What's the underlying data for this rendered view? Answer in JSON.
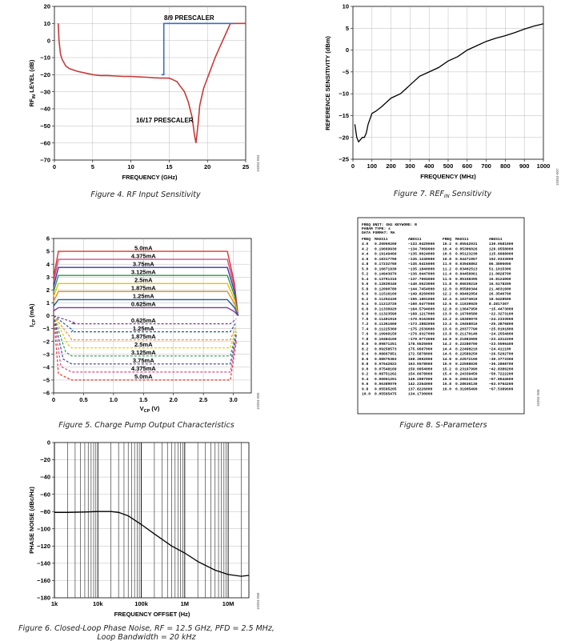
{
  "charts": [
    {
      "type": "line",
      "caption": "Figure 4. RF Input Sensitivity",
      "figure_id": "10304-004",
      "xlabel": "FREQUENCY (GHz)",
      "ylabel_main": "RF",
      "ylabel_sub": "IN",
      "ylabel_rest": " LEVEL (dB)",
      "xlim": [
        0,
        25
      ],
      "ylim": [
        -70,
        20
      ],
      "xticks": [
        "0",
        "5",
        "10",
        "15",
        "20",
        "25"
      ],
      "yticks": [
        "20",
        "10",
        "0",
        "−10",
        "−20",
        "−30",
        "−40",
        "−50",
        "−60",
        "−70"
      ],
      "annotations": [
        "8/9 PRESCALER",
        "16/17 PRESCALER"
      ],
      "series": [
        {
          "color": "#c83a3a",
          "x": [
            0.5,
            0.6,
            0.8,
            1,
            1.5,
            2,
            3,
            4,
            5,
            6,
            7,
            8,
            9,
            10,
            11,
            12,
            13,
            14,
            15,
            15.5,
            16,
            16.5,
            17,
            17.5,
            18,
            18.3,
            18.5,
            18.8,
            19,
            19.5,
            20,
            20.5,
            21,
            21.5,
            22,
            22.5,
            23,
            23.5,
            24,
            25
          ],
          "y": [
            10,
            0,
            -8,
            -11,
            -15,
            -16.5,
            -18,
            -19,
            -20,
            -20.5,
            -20.5,
            -20.8,
            -21,
            -21,
            -21.3,
            -21.5,
            -21.8,
            -22,
            -22,
            -23,
            -24,
            -27,
            -30,
            -36,
            -45,
            -55,
            -60,
            -48,
            -38,
            -28,
            -22,
            -16,
            -10,
            -5,
            0,
            5,
            10,
            10,
            10,
            10
          ]
        },
        {
          "color": "#3b6cc0",
          "x": [
            14,
            14.3,
            14.3,
            23.5
          ],
          "y": [
            -20,
            -20,
            10,
            10
          ]
        }
      ]
    },
    {
      "type": "line",
      "caption_main": "Figure 7. REF",
      "caption_sub": "IN",
      "caption_rest": " Sensitivity",
      "figure_id": "10304-007",
      "xlabel": "FREQUENCY (MHz)",
      "ylabel_main": "REFERENCE SENSITIVITY (dBm)",
      "xlim": [
        0,
        1000
      ],
      "ylim": [
        -25,
        10
      ],
      "xticks": [
        "0",
        "100",
        "200",
        "300",
        "400",
        "500",
        "600",
        "700",
        "800",
        "900",
        "1000"
      ],
      "yticks": [
        "10",
        "5",
        "0",
        "−5",
        "−10",
        "−15",
        "−20",
        "−25"
      ],
      "series": [
        {
          "color": "#000000",
          "x": [
            10,
            20,
            30,
            40,
            50,
            60,
            70,
            80,
            100,
            120,
            150,
            200,
            250,
            300,
            350,
            400,
            450,
            500,
            550,
            600,
            650,
            700,
            750,
            800,
            850,
            900,
            950,
            1000
          ],
          "y": [
            -17,
            -20,
            -21,
            -20.5,
            -20,
            -20,
            -19,
            -17,
            -14.5,
            -14,
            -13,
            -11,
            -10,
            -8,
            -6,
            -5,
            -4,
            -2.5,
            -1.5,
            0,
            1,
            2,
            2.7,
            3.3,
            4,
            4.8,
            5.5,
            6
          ]
        }
      ]
    },
    {
      "type": "line",
      "caption": "Figure 5. Charge Pump Output Characteristics",
      "figure_id": "10304-005",
      "xlabel_main": "V",
      "xlabel_sub": "CP",
      "xlabel_rest": " (V)",
      "ylabel_main": "I",
      "ylabel_sub": "CP",
      "ylabel_rest": " (mA)",
      "xlim": [
        0,
        3.3
      ],
      "ylim": [
        -6,
        6
      ],
      "xticks": [
        "0",
        "0.5",
        "1.0",
        "1.5",
        "2.0",
        "2.5",
        "3.0"
      ],
      "yticks": [
        "6",
        "5",
        "4",
        "3",
        "2",
        "1",
        "0",
        "−1",
        "−2",
        "−3",
        "−4",
        "−5",
        "−6"
      ],
      "levels": [
        5.0,
        4.375,
        3.75,
        3.125,
        2.5,
        1.875,
        1.25,
        0.625
      ],
      "level_labels": [
        "5.0mA",
        "4.375mA",
        "3.75mA",
        "3.125mA",
        "2.5mA",
        "1.875mA",
        "1.25mA",
        "0.625mA"
      ],
      "neg_level_labels": [
        "0.625mA",
        "1.25mA",
        "1.875mA",
        "2.5mA",
        "3.125mA",
        "3.75mA",
        "4.375mA",
        "5.0mA"
      ],
      "colors": [
        "#e0342a",
        "#d84a8a",
        "#3a3aa8",
        "#2a9a4a",
        "#f0c000",
        "#f08a20",
        "#1a5aa0",
        "#7a3aa0"
      ]
    },
    {
      "type": "table",
      "caption": "Figure 8. S-Parameters",
      "figure_id": "10304-008",
      "header_lines": [
        "FREQ UNIT:    GHz  KEYWORD: R",
        "PARAM TYPE:   s",
        "DATA FORMAT: MA"
      ],
      "columns": [
        "FREQ",
        "MAGS11",
        "ANGS11"
      ],
      "left_rows": [
        [
          "4.0",
          "0.20059200",
          "−133.9429000"
        ],
        [
          "4.2",
          "0.19669930",
          "−134.7069000"
        ],
        [
          "4.4",
          "0.19149460",
          "−135.0024000"
        ],
        [
          "4.6",
          "0.18317790",
          "−135.1249000"
        ],
        [
          "4.8",
          "0.17232760",
          "−135.0415000"
        ],
        [
          "5.0",
          "0.16071930",
          "−135.1840000"
        ],
        [
          "5.2",
          "0.14943970",
          "−136.0447000"
        ],
        [
          "5.4",
          "0.13791310",
          "−137.7694000"
        ],
        [
          "5.6",
          "0.12839340",
          "−140.5523000"
        ],
        [
          "5.8",
          "0.12090780",
          "−144.7454000"
        ],
        [
          "6.0",
          "0.11516160",
          "−149.8260000"
        ],
        [
          "6.2",
          "0.11252430",
          "−155.1801000"
        ],
        [
          "6.4",
          "0.11213720",
          "−160.0477000"
        ],
        [
          "6.6",
          "0.11336920",
          "−164.5794000"
        ],
        [
          "6.8",
          "0.11323590",
          "−168.1217000"
        ],
        [
          "7.0",
          "0.11491910",
          "−170.9163000"
        ],
        [
          "7.2",
          "0.11361600",
          "−173.2882000"
        ],
        [
          "7.4",
          "0.11225360",
          "−175.2539000"
        ],
        [
          "7.6",
          "0.10999150",
          "−176.9327000"
        ],
        [
          "7.8",
          "0.10484100",
          "−179.0774000"
        ],
        [
          "8.0",
          "0.09871251",
          "178.5525000"
        ],
        [
          "8.2",
          "0.09258573",
          "175.9697000"
        ],
        [
          "8.4",
          "0.08667851",
          "172.5878000"
        ],
        [
          "8.6",
          "0.08075383",
          "168.3692000"
        ],
        [
          "8.8",
          "0.07642822",
          "163.5578000"
        ],
        [
          "9.0",
          "0.07548169",
          "159.0954000"
        ],
        [
          "9.2",
          "0.08751262",
          "154.6978000"
        ],
        [
          "9.4",
          "0.06061201",
          "149.2087000"
        ],
        [
          "9.6",
          "0.06389079",
          "142.2264000"
        ],
        [
          "9.8",
          "0.05595205",
          "137.8226000"
        ],
        [
          "10.0",
          "0.05565475",
          "134.1730000"
        ]
      ],
      "right_rows": [
        [
          "10.2",
          "0.05542031",
          "130.0581000"
        ],
        [
          "10.4",
          "0.05306026",
          "126.9558000"
        ],
        [
          "10.6",
          "0.05123230",
          "115.8988000"
        ],
        [
          "10.8",
          "0.04471957",
          "102.0333000"
        ],
        [
          "11.0",
          "0.03946862",
          "86.3895000"
        ],
        [
          "11.2",
          "0.03402513",
          "51.1015300"
        ],
        [
          "11.4",
          "0.04456061",
          "21.0828700"
        ],
        [
          "11.6",
          "0.05158395",
          "16.8124000"
        ],
        [
          "11.8",
          "0.06039219",
          "16.5178200"
        ],
        [
          "12.0",
          "0.05580344",
          "21.4631600"
        ],
        [
          "12.2",
          "0.08402054",
          "26.3540700"
        ],
        [
          "12.4",
          "0.10374910",
          "18.6428500"
        ],
        [
          "12.6",
          "0.11639920",
          "8.2817307"
        ],
        [
          "12.8",
          "0.13647950",
          "−15.4473000"
        ],
        [
          "13.0",
          "0.16700580",
          "−22.3273100"
        ],
        [
          "13.2",
          "0.18309070",
          "−24.2333900"
        ],
        [
          "13.4",
          "0.19458010",
          "−25.3876800"
        ],
        [
          "13.6",
          "0.20377790",
          "−25.0101800"
        ],
        [
          "13.8",
          "0.21170140",
          "−24.2554800"
        ],
        [
          "14.0",
          "0.21883690",
          "−23.4312200"
        ],
        [
          "14.2",
          "0.22280700",
          "−23.5596400"
        ],
        [
          "14.4",
          "0.22498210",
          "−24.411100"
        ],
        [
          "14.6",
          "0.22589250",
          "−26.5202700"
        ],
        [
          "14.8",
          "0.22572100",
          "−30.3773300"
        ],
        [
          "15.0",
          "0.22598030",
          "−36.2808700"
        ],
        [
          "15.2",
          "0.23197990",
          "−42.8386200"
        ],
        [
          "15.4",
          "0.24339450",
          "−50.7222200"
        ],
        [
          "15.6",
          "0.26023130",
          "−57.8644600"
        ],
        [
          "15.8",
          "0.28636130",
          "−63.0764200"
        ],
        [
          "16.0",
          "0.31905490",
          "−67.5389600"
        ]
      ]
    },
    {
      "type": "line",
      "caption_lines": [
        "Figure 6. Closed-Loop Phase Noise, RF = 12.5 GHz, PFD = 2.5 MHz,",
        "Loop Bandwidth = 20 kHz"
      ],
      "figure_id": "10304-006",
      "xlabel": "FREQUENCY OFFSET (Hz)",
      "ylabel_main": "PHASE NOISE (dBc/Hz)",
      "xscale": "log",
      "xlim": [
        1000,
        30000000
      ],
      "ylim": [
        -180,
        0
      ],
      "xticks": [
        "1k",
        "10k",
        "100k",
        "1M",
        "10M"
      ],
      "yticks": [
        "0",
        "−20",
        "−40",
        "−60",
        "−80",
        "−100",
        "−120",
        "−140",
        "−160",
        "−180"
      ],
      "series": [
        {
          "color": "#000000",
          "x": [
            1000,
            2000,
            5000,
            10000,
            15000,
            20000,
            30000,
            50000,
            100000,
            200000,
            500000,
            1000000,
            2000000,
            5000000,
            10000000,
            20000000,
            30000000
          ],
          "y": [
            -81,
            -81,
            -80.5,
            -80,
            -80,
            -80,
            -81,
            -85,
            -95,
            -106,
            -120,
            -128,
            -138,
            -148,
            -153,
            -155,
            -154
          ]
        }
      ]
    }
  ]
}
